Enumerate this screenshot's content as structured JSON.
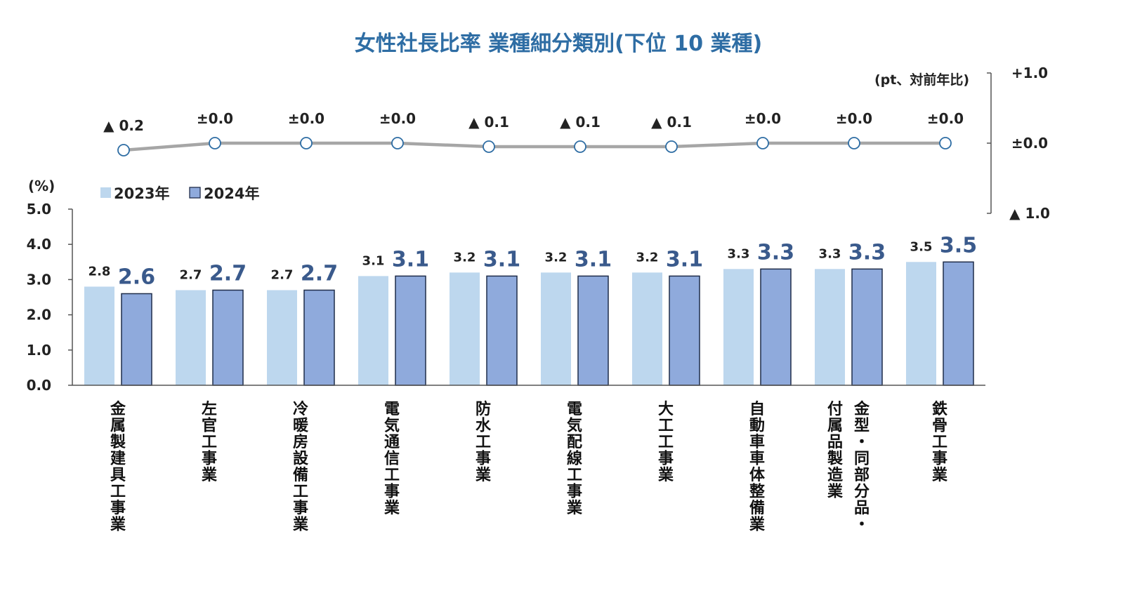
{
  "chart_data": {
    "type": "bar",
    "title": "女性社長比率 業種細分類別(下位 10 業種)",
    "ylabel": "(%)",
    "ylim": [
      0,
      5
    ],
    "yticks": [
      "5.0",
      "4.0",
      "3.0",
      "2.0",
      "1.0",
      "0.0"
    ],
    "categories": [
      [
        "金属製建具工事業"
      ],
      [
        "左官工事業"
      ],
      [
        "冷暖房設備工事業"
      ],
      [
        "電気通信工事業"
      ],
      [
        "防水工事業"
      ],
      [
        "電気配線工事業"
      ],
      [
        "大工工事業"
      ],
      [
        "自動車車体整備業"
      ],
      [
        "金型・同部分品・",
        "付属品製造業"
      ],
      [
        "鉄骨工事業"
      ]
    ],
    "series": [
      {
        "name": "2023年",
        "color": "#bdd7ee",
        "values": [
          2.8,
          2.7,
          2.7,
          3.1,
          3.2,
          3.2,
          3.2,
          3.3,
          3.3,
          3.5
        ],
        "labels": [
          "2.8",
          "2.7",
          "2.7",
          "3.1",
          "3.2",
          "3.2",
          "3.2",
          "3.3",
          "3.3",
          "3.5"
        ]
      },
      {
        "name": "2024年",
        "color": "#8faadc",
        "values": [
          2.6,
          2.7,
          2.7,
          3.1,
          3.1,
          3.1,
          3.1,
          3.3,
          3.3,
          3.5
        ],
        "labels": [
          "2.6",
          "2.7",
          "2.7",
          "3.1",
          "3.1",
          "3.1",
          "3.1",
          "3.3",
          "3.3",
          "3.5"
        ]
      }
    ],
    "diff_series": {
      "unit_label": "(pt、対前年比)",
      "ylim": [
        -1.0,
        1.0
      ],
      "yticks": [
        "+1.0",
        "±0.0",
        "▲ 1.0"
      ],
      "values": [
        -0.2,
        0.0,
        0.0,
        0.0,
        -0.1,
        -0.1,
        -0.1,
        0.0,
        0.0,
        0.0
      ],
      "labels": [
        "▲ 0.2",
        "±0.0",
        "±0.0",
        "±0.0",
        "▲ 0.1",
        "▲ 0.1",
        "▲ 0.1",
        "±0.0",
        "±0.0",
        "±0.0"
      ],
      "line_color": "#a6a6a6",
      "marker_color": "#2e6da4"
    },
    "legend_position": "top-left"
  }
}
